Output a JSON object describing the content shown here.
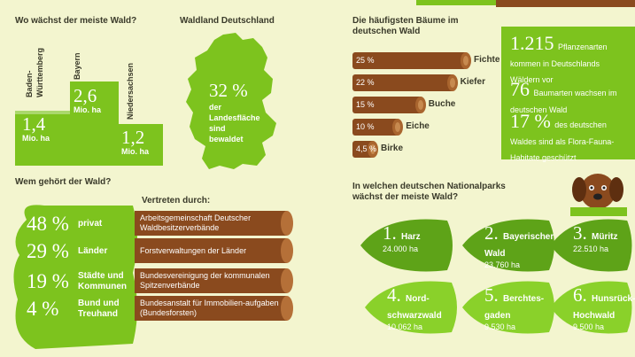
{
  "section1": {
    "title": "Wo wächst der meiste Wald?",
    "states": [
      {
        "name": "Baden-\nWürttemberg",
        "value": "1,4",
        "unit": "Mio. ha"
      },
      {
        "name": "Bayern",
        "value": "2,6",
        "unit": "Mio. ha"
      },
      {
        "name": "Niedersachsen",
        "value": "1,2",
        "unit": "Mio. ha"
      }
    ]
  },
  "section2": {
    "title": "Waldland Deutschland",
    "percent": "32 %",
    "text": "der Landesfläche sind bewaldet"
  },
  "section3": {
    "title": "Die häufigsten Bäume im deutschen Wald",
    "trees": [
      {
        "pct": "25 %",
        "name": "Fichte",
        "share": 25
      },
      {
        "pct": "22 %",
        "name": "Kiefer",
        "share": 22
      },
      {
        "pct": "15 %",
        "name": "Buche",
        "share": 15
      },
      {
        "pct": "10 %",
        "name": "Eiche",
        "share": 10
      },
      {
        "pct": "4,5 %",
        "name": "Birke",
        "share": 4.5
      }
    ]
  },
  "facts": {
    "f1_num": "1.215",
    "f1_text": "Pflanzenarten kommen in Deutschlands Wäldern vor",
    "f2_num": "76",
    "f2_text": "Baumarten wachsen im deutschen Wald",
    "f3_num": "17 %",
    "f3_text": "des deutschen Waldes sind als Flora-Fauna-Habitate geschützt"
  },
  "section4": {
    "title": "Wem gehört der Wald?",
    "rep_title": "Vertreten durch:",
    "owners": [
      {
        "pct": "48 %",
        "label": "privat",
        "org": "Arbeitsgemeinschaft Deutscher Waldbesitzerverbände"
      },
      {
        "pct": "29 %",
        "label": "Länder",
        "org": "Forstverwaltungen der Länder"
      },
      {
        "pct": "19 %",
        "label": "Städte und Kommunen",
        "org": "Bundesvereinigung der kommunalen Spitzenverbände"
      },
      {
        "pct": "4 %",
        "label": "Bund und Treuhand",
        "org": "Bundesanstalt für Immobilien-aufgaben (Bundesforsten)"
      }
    ]
  },
  "section5": {
    "title": "In welchen deutschen Nationalparks wächst der meiste Wald?",
    "parks": [
      {
        "num": "1.",
        "name": "Harz",
        "area": "24.000 ha"
      },
      {
        "num": "2.",
        "name": "Bayerischer Wald",
        "area": "23.760 ha"
      },
      {
        "num": "3.",
        "name": "Müritz",
        "area": "22.510 ha"
      },
      {
        "num": "4.",
        "name": "Nord-schwarzwald",
        "area": "10.062 ha"
      },
      {
        "num": "5.",
        "name": "Berchtes-gaden",
        "area": "9.530 ha"
      },
      {
        "num": "6.",
        "name": "Hunsrück-Hochwald",
        "area": "9.500 ha"
      }
    ]
  },
  "colors": {
    "accent": "#7dc31e",
    "wood": "#8a4a1e",
    "bg": "#f3f5cf"
  }
}
